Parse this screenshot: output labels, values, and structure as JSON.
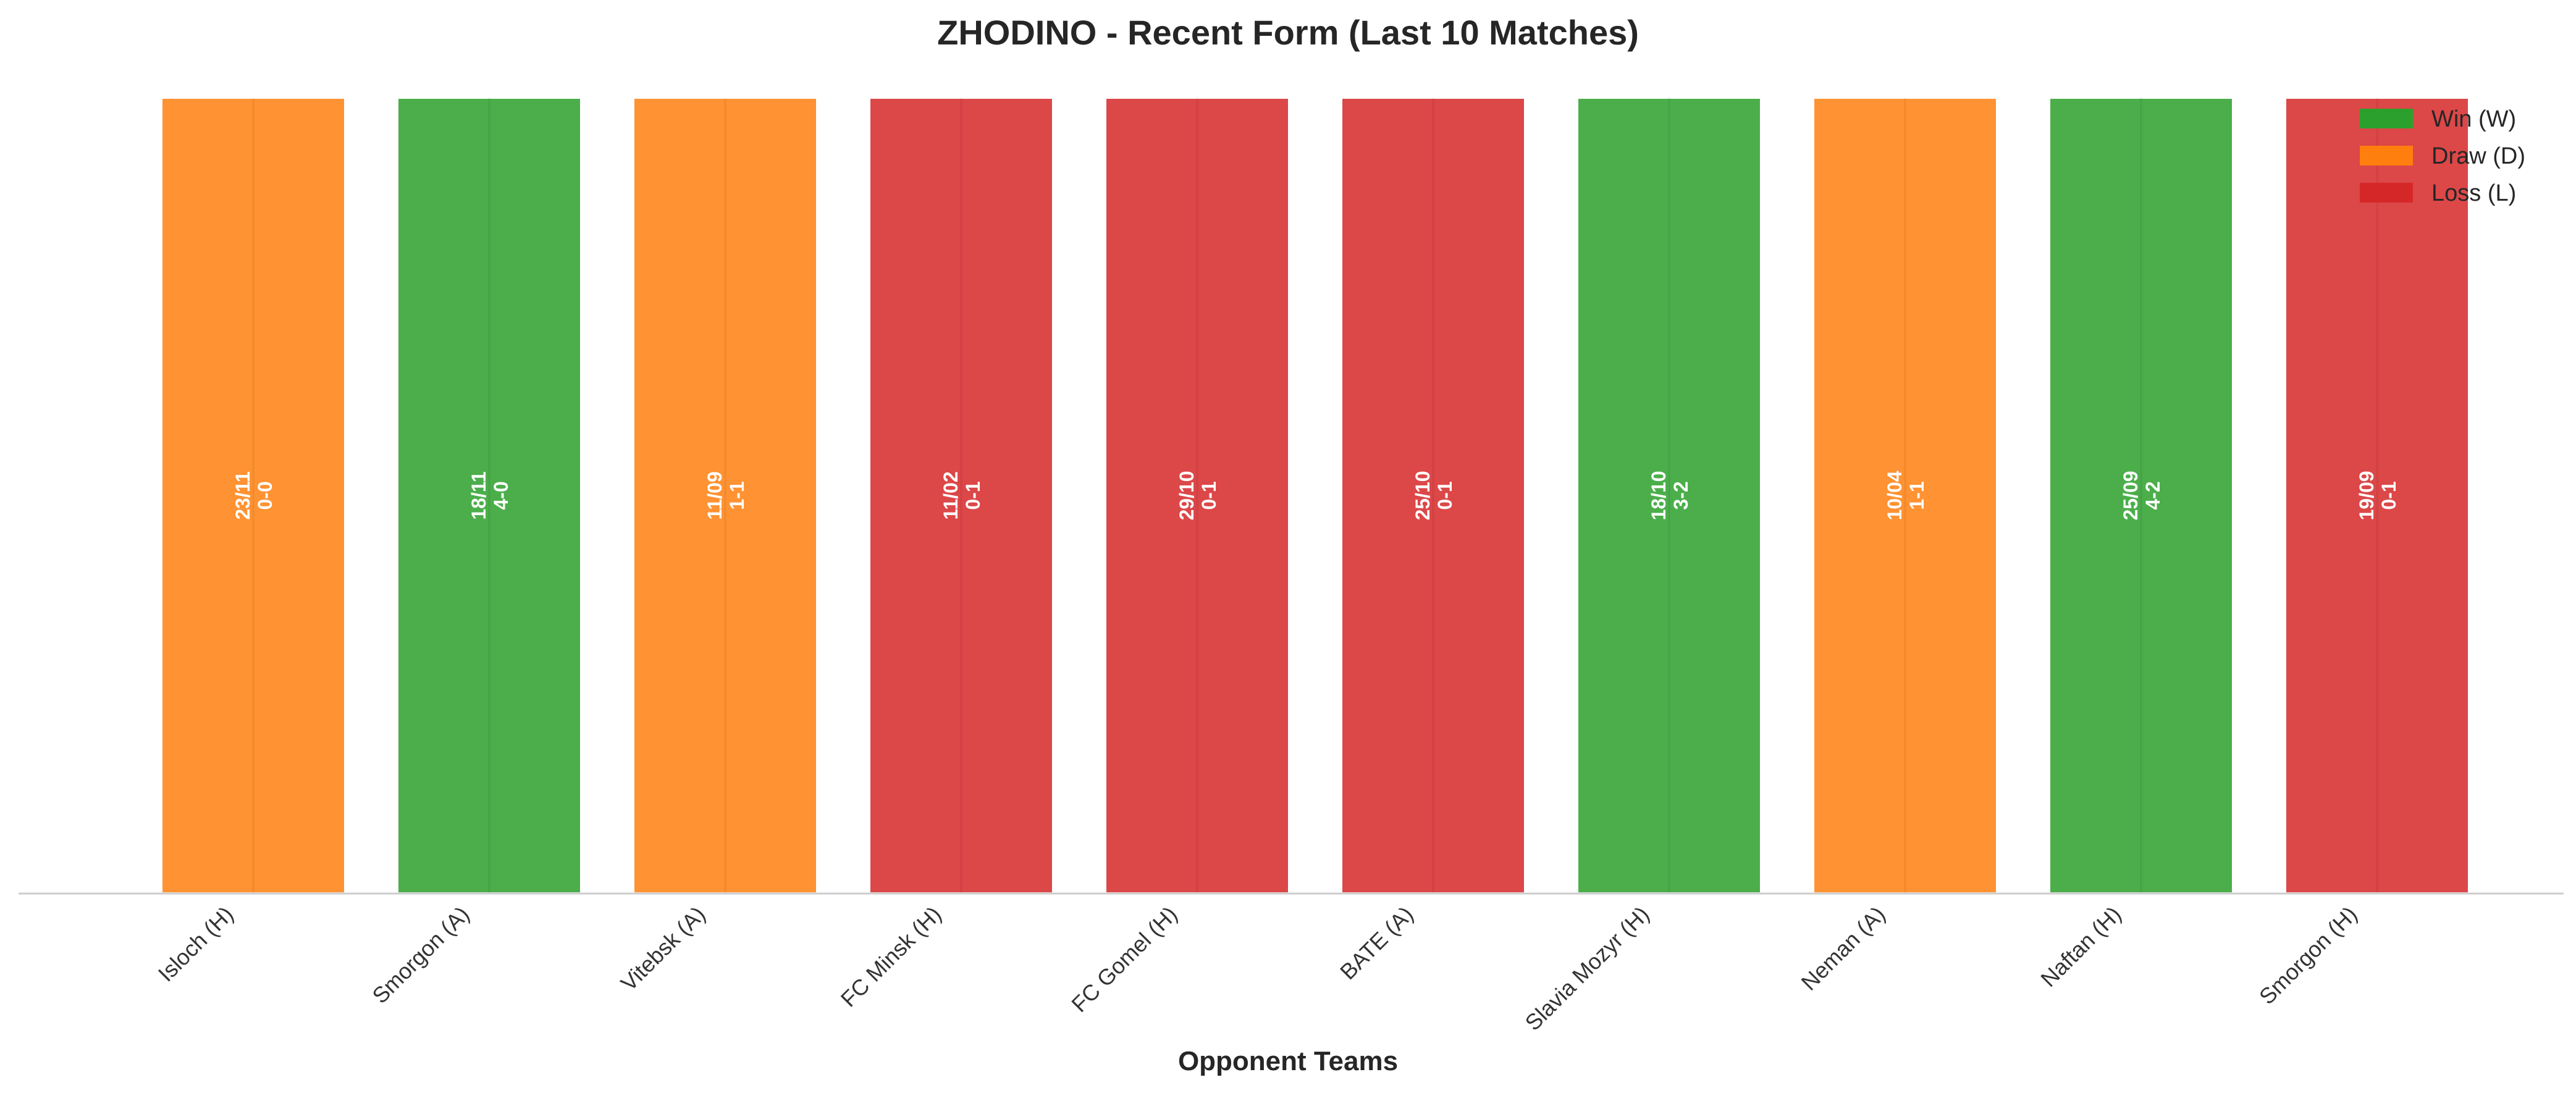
{
  "colors": {
    "W": "#2ca02c",
    "D": "#ff7f0e",
    "L": "#d62728"
  },
  "chart_data": {
    "type": "bar",
    "title": "ZHODINO - Recent Form (Last 10 Matches)",
    "xlabel": "Opponent Teams",
    "ylabel": "",
    "grid": false,
    "legend_position": "top-right",
    "legend": [
      {
        "key": "W",
        "label": "Win (W)"
      },
      {
        "key": "D",
        "label": "Draw (D)"
      },
      {
        "key": "L",
        "label": "Loss (L)"
      }
    ],
    "categories": [
      "Isloch (H)",
      "Smorgon (A)",
      "Vitebsk (A)",
      "FC Minsk (H)",
      "FC Gomel (H)",
      "BATE (A)",
      "Slavia Mozyr (H)",
      "Neman (A)",
      "Naftan (H)",
      "Smorgon (H)"
    ],
    "values": [
      1,
      1,
      1,
      1,
      1,
      1,
      1,
      1,
      1,
      1
    ],
    "results": [
      "D",
      "W",
      "D",
      "L",
      "L",
      "L",
      "W",
      "D",
      "W",
      "L"
    ],
    "dates": [
      "23/11",
      "18/11",
      "11/09",
      "11/02",
      "29/10",
      "25/10",
      "18/10",
      "10/04",
      "25/09",
      "19/09"
    ],
    "scores": [
      "0-0",
      "4-0",
      "1-1",
      "0-1",
      "0-1",
      "0-1",
      "3-2",
      "1-1",
      "4-2",
      "0-1"
    ]
  }
}
